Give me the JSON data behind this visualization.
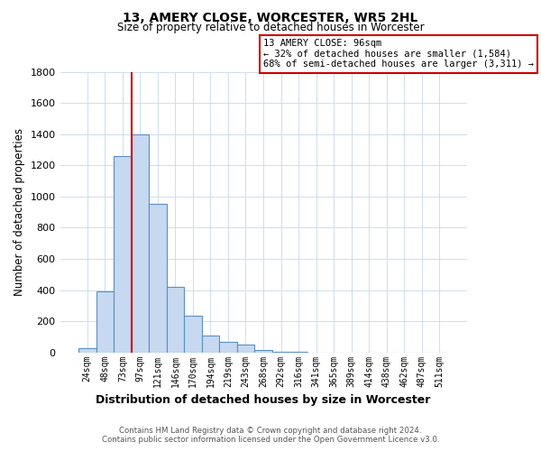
{
  "title": "13, AMERY CLOSE, WORCESTER, WR5 2HL",
  "subtitle": "Size of property relative to detached houses in Worcester",
  "xlabel": "Distribution of detached houses by size in Worcester",
  "ylabel": "Number of detached properties",
  "bin_labels": [
    "24sqm",
    "48sqm",
    "73sqm",
    "97sqm",
    "121sqm",
    "146sqm",
    "170sqm",
    "194sqm",
    "219sqm",
    "243sqm",
    "268sqm",
    "292sqm",
    "316sqm",
    "341sqm",
    "365sqm",
    "389sqm",
    "414sqm",
    "438sqm",
    "462sqm",
    "487sqm",
    "511sqm"
  ],
  "bin_values": [
    25,
    390,
    1260,
    1400,
    950,
    420,
    235,
    110,
    70,
    50,
    15,
    5,
    2,
    0,
    0,
    0,
    0,
    0,
    0,
    0,
    0
  ],
  "bar_color": "#c6d9f0",
  "bar_edge_color": "#5a8fc3",
  "property_line_color": "#cc0000",
  "property_line_bin_index": 3,
  "annotation_line1": "13 AMERY CLOSE: 96sqm",
  "annotation_line2": "← 32% of detached houses are smaller (1,584)",
  "annotation_line3": "68% of semi-detached houses are larger (3,311) →",
  "annotation_box_color": "#ffffff",
  "annotation_box_edge_color": "#cc0000",
  "ylim": [
    0,
    1800
  ],
  "yticks": [
    0,
    200,
    400,
    600,
    800,
    1000,
    1200,
    1400,
    1600,
    1800
  ],
  "footer_line1": "Contains HM Land Registry data © Crown copyright and database right 2024.",
  "footer_line2": "Contains public sector information licensed under the Open Government Licence v3.0.",
  "background_color": "#ffffff",
  "grid_color": "#c8d8ec"
}
